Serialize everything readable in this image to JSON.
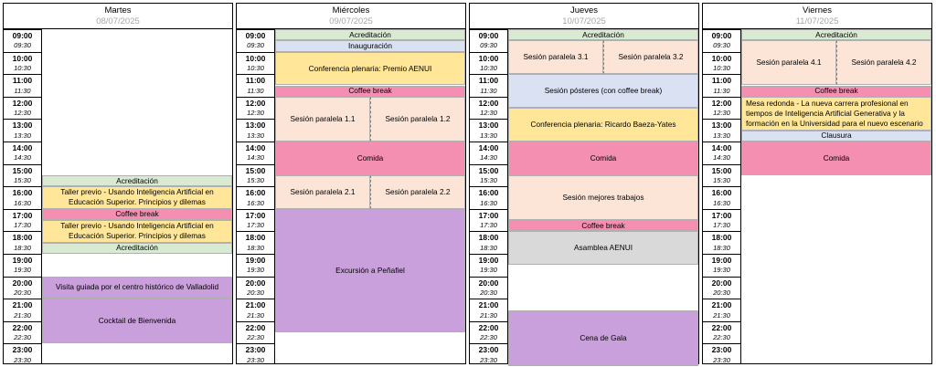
{
  "days": [
    {
      "name": "Martes",
      "date": "08/07/2025",
      "events": [
        {
          "label": "Acreditación",
          "start": "15:30",
          "end": "16:00",
          "color": "green"
        },
        {
          "label": "Taller previo - Usando Inteligencia Artificial en Educación Superior. Principios y dilemas",
          "start": "16:00",
          "end": "17:00",
          "color": "yellow"
        },
        {
          "label": "Coffee break",
          "start": "17:00",
          "end": "17:30",
          "color": "pink"
        },
        {
          "label": "Taller previo - Usando Inteligencia Artificial en Educación Superior. Principios y dilemas",
          "start": "17:30",
          "end": "18:30",
          "color": "yellow"
        },
        {
          "label": "Acreditación",
          "start": "18:30",
          "end": "19:00",
          "color": "green"
        },
        {
          "label": "Visita guiada por el centro histórico de Valladolid",
          "start": "20:00",
          "end": "21:00",
          "color": "purple"
        },
        {
          "label": "Cocktail de Bienvenida",
          "start": "21:00",
          "end": "23:00",
          "color": "purple"
        }
      ]
    },
    {
      "name": "Miércoles",
      "date": "09/07/2025",
      "events": [
        {
          "label": "Acreditación",
          "start": "09:00",
          "end": "09:30",
          "color": "green"
        },
        {
          "label": "Inauguración",
          "start": "09:30",
          "end": "10:00",
          "color": "blue"
        },
        {
          "label": "Conferencia plenaria: Premio AENUI",
          "start": "10:00",
          "end": "11:30",
          "color": "yellow"
        },
        {
          "label": "Coffee break",
          "start": "11:30",
          "end": "12:00",
          "color": "pink"
        },
        {
          "label": "Sesión paralela 1.1",
          "start": "12:00",
          "end": "14:00",
          "color": "peach",
          "half": "left"
        },
        {
          "label": "Sesión paralela 1.2",
          "start": "12:00",
          "end": "14:00",
          "color": "peach",
          "half": "right"
        },
        {
          "label": "Comida",
          "start": "14:00",
          "end": "15:30",
          "color": "pink"
        },
        {
          "label": "Sesión paralela 2.1",
          "start": "15:30",
          "end": "17:00",
          "color": "peach",
          "half": "left"
        },
        {
          "label": "Sesión paralela 2.2",
          "start": "15:30",
          "end": "17:00",
          "color": "peach",
          "half": "right"
        },
        {
          "label": "Excursión a Peñafiel",
          "start": "17:00",
          "end": "22:30",
          "color": "purple"
        }
      ]
    },
    {
      "name": "Jueves",
      "date": "10/07/2025",
      "events": [
        {
          "label": "Acreditación",
          "start": "09:00",
          "end": "09:30",
          "color": "green"
        },
        {
          "label": "Sesión paralela 3.1",
          "start": "09:30",
          "end": "11:00",
          "color": "peach",
          "half": "left"
        },
        {
          "label": "Sesión paralela 3.2",
          "start": "09:30",
          "end": "11:00",
          "color": "peach",
          "half": "right"
        },
        {
          "label": "Sesión pósteres (con coffee break)",
          "start": "11:00",
          "end": "12:30",
          "color": "blue"
        },
        {
          "label": "Conferencia plenaria: Ricardo Baeza-Yates",
          "start": "12:30",
          "end": "14:00",
          "color": "yellow"
        },
        {
          "label": "Comida",
          "start": "14:00",
          "end": "15:30",
          "color": "pink"
        },
        {
          "label": "Sesión mejores trabajos",
          "start": "15:30",
          "end": "17:30",
          "color": "peach"
        },
        {
          "label": "Coffee break",
          "start": "17:30",
          "end": "18:00",
          "color": "pink"
        },
        {
          "label": "Asamblea AENUI",
          "start": "18:00",
          "end": "19:30",
          "color": "grey"
        },
        {
          "label": "Cena de Gala",
          "start": "21:30",
          "end": "24:00",
          "color": "purple"
        }
      ]
    },
    {
      "name": "Viernes",
      "date": "11/07/2025",
      "events": [
        {
          "label": "Acreditación",
          "start": "09:00",
          "end": "09:30",
          "color": "green"
        },
        {
          "label": "Sesión paralela 4.1",
          "start": "09:30",
          "end": "11:30",
          "color": "peach",
          "half": "left"
        },
        {
          "label": "Sesión paralela 4.2",
          "start": "09:30",
          "end": "11:30",
          "color": "peach",
          "half": "right"
        },
        {
          "label": "Coffee break",
          "start": "11:30",
          "end": "12:00",
          "color": "pink"
        },
        {
          "label": "Mesa redonda - La nueva carrera profesional en tiempos de Inteligencia Artificial Generativa y la formación en la Universidad para el nuevo escenario",
          "start": "12:00",
          "end": "13:30",
          "color": "yellow",
          "align": "left"
        },
        {
          "label": "Clausura",
          "start": "13:30",
          "end": "14:00",
          "color": "blue"
        },
        {
          "label": "Comida",
          "start": "14:00",
          "end": "15:30",
          "color": "pink"
        }
      ]
    }
  ],
  "time_slots": [
    "09:00",
    "09:30",
    "10:00",
    "10:30",
    "11:00",
    "11:30",
    "12:00",
    "12:30",
    "13:00",
    "13:30",
    "14:00",
    "14:30",
    "15:00",
    "15:30",
    "16:00",
    "16:30",
    "17:00",
    "17:30",
    "18:00",
    "18:30",
    "19:00",
    "19:30",
    "20:00",
    "20:30",
    "21:00",
    "21:30",
    "22:00",
    "22:30",
    "23:00",
    "23:30"
  ],
  "colors": {
    "green": "#d9ead3",
    "blue": "#d9e1f2",
    "yellow": "#ffe699",
    "pink": "#f48fb1",
    "peach": "#fce4d6",
    "grey": "#d9d9d9",
    "purple": "#c9a0dc"
  }
}
